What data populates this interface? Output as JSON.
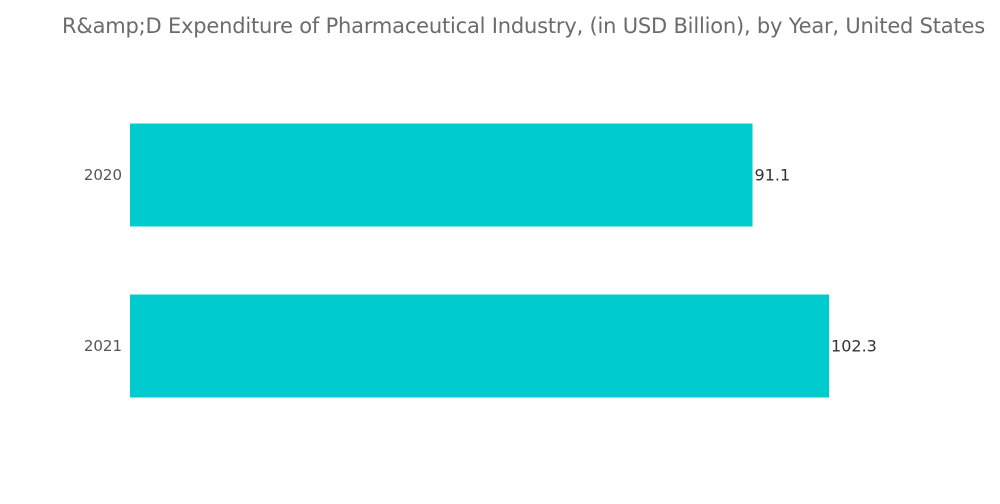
{
  "chart_data": {
    "type": "bar",
    "orientation": "horizontal",
    "title": "R&amp;D Expenditure of Pharmaceutical Industry, (in USD Billion), by Year, United States",
    "categories": [
      "2020",
      "2021"
    ],
    "values": [
      91.1,
      102.3
    ],
    "value_labels": [
      "91.1",
      "102.3"
    ],
    "xlabel": "",
    "ylabel": "",
    "xlim": [
      0,
      120
    ],
    "grid": false,
    "legend": "none",
    "bar_color": "#00CCD0"
  }
}
